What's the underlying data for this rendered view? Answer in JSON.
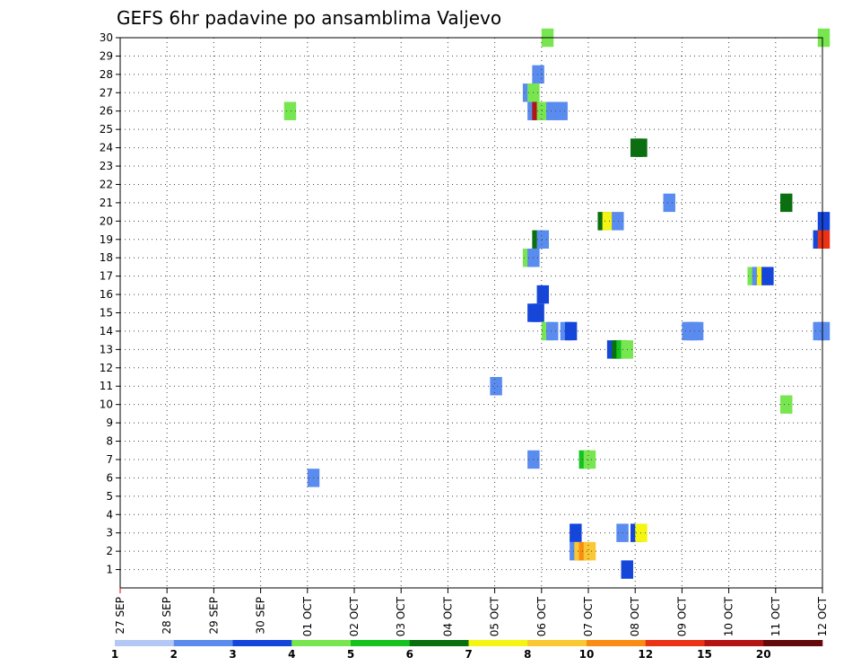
{
  "chart_data": {
    "type": "heatmap",
    "title": "GEFS 6hr padavine po ansamblima Valjevo",
    "xlabel": "",
    "ylabel": "",
    "x_tick_labels": [
      "27 SEP",
      "28 SEP",
      "29 SEP",
      "30 SEP",
      "01 OCT",
      "02 OCT",
      "03 OCT",
      "04 OCT",
      "05 OCT",
      "06 OCT",
      "07 OCT",
      "08 OCT",
      "09 OCT",
      "10 OCT",
      "11 OCT",
      "12 OCT"
    ],
    "y_tick_labels": [
      "1",
      "2",
      "3",
      "4",
      "5",
      "6",
      "7",
      "8",
      "9",
      "10",
      "11",
      "12",
      "13",
      "14",
      "15",
      "16",
      "17",
      "18",
      "19",
      "20",
      "21",
      "22",
      "23",
      "24",
      "25",
      "26",
      "27",
      "28",
      "29",
      "30"
    ],
    "grid": true,
    "color_scale": {
      "bounds": [
        "1",
        "2",
        "3",
        "4",
        "5",
        "6",
        "7",
        "8",
        "10",
        "12",
        "15",
        "20"
      ],
      "colors": [
        "#b4c8f5",
        "#5a8cf0",
        "#1446dc",
        "#78e650",
        "#14c31e",
        "#0a700f",
        "#f5f514",
        "#fac832",
        "#fa8c14",
        "#eb3214",
        "#b41414",
        "#640a0a"
      ]
    },
    "cells": [
      [
        9.0,
        30,
        3
      ],
      [
        14.9,
        30,
        3
      ],
      [
        8.8,
        28,
        1
      ],
      [
        8.6,
        27,
        1
      ],
      [
        8.7,
        27,
        3
      ],
      [
        3.5,
        26,
        3
      ],
      [
        8.7,
        26,
        1
      ],
      [
        8.8,
        26,
        10
      ],
      [
        8.9,
        26,
        3
      ],
      [
        9.1,
        26,
        1
      ],
      [
        9.3,
        26,
        1
      ],
      [
        10.9,
        24,
        5
      ],
      [
        11.0,
        24,
        5
      ],
      [
        11.6,
        21,
        1
      ],
      [
        14.1,
        21,
        5
      ],
      [
        10.2,
        20,
        5
      ],
      [
        10.3,
        20,
        6
      ],
      [
        10.5,
        20,
        1
      ],
      [
        14.9,
        20,
        2
      ],
      [
        8.8,
        19,
        5
      ],
      [
        8.9,
        19,
        1
      ],
      [
        14.8,
        19,
        2
      ],
      [
        14.9,
        19,
        9
      ],
      [
        8.6,
        18,
        3
      ],
      [
        8.7,
        18,
        1
      ],
      [
        13.4,
        17,
        3
      ],
      [
        13.5,
        17,
        1
      ],
      [
        13.6,
        17,
        6
      ],
      [
        13.7,
        17,
        2
      ],
      [
        8.9,
        16,
        2
      ],
      [
        8.7,
        15,
        2
      ],
      [
        8.8,
        15,
        2
      ],
      [
        9.0,
        14,
        3
      ],
      [
        9.1,
        14,
        1
      ],
      [
        9.4,
        14,
        1
      ],
      [
        9.5,
        14,
        2
      ],
      [
        12.0,
        14,
        1
      ],
      [
        12.1,
        14,
        1
      ],
      [
        12.2,
        14,
        1
      ],
      [
        14.8,
        14,
        1
      ],
      [
        14.9,
        14,
        1
      ],
      [
        10.4,
        13,
        2
      ],
      [
        10.5,
        13,
        5
      ],
      [
        10.6,
        13,
        4
      ],
      [
        10.7,
        13,
        3
      ],
      [
        7.9,
        11,
        1
      ],
      [
        14.1,
        10,
        3
      ],
      [
        8.7,
        7,
        1
      ],
      [
        9.8,
        7,
        4
      ],
      [
        9.9,
        7,
        3
      ],
      [
        4.0,
        6,
        1
      ],
      [
        9.6,
        3,
        2
      ],
      [
        10.6,
        3,
        1
      ],
      [
        10.9,
        3,
        2
      ],
      [
        11.0,
        3,
        6
      ],
      [
        9.6,
        2,
        1
      ],
      [
        9.7,
        2,
        7
      ],
      [
        9.8,
        2,
        8
      ],
      [
        9.9,
        2,
        7
      ],
      [
        10.7,
        1,
        2
      ]
    ]
  }
}
